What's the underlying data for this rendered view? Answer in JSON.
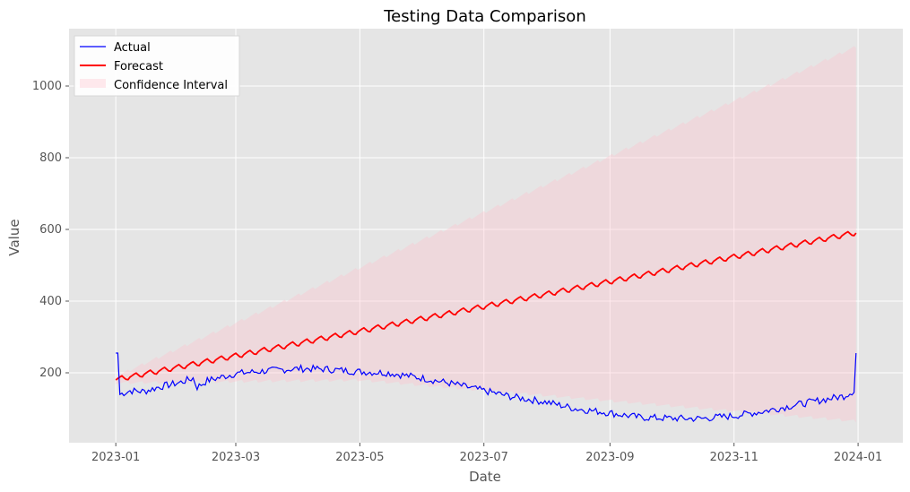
{
  "chart_data": {
    "type": "line",
    "title": "Testing Data Comparison",
    "xlabel": "Date",
    "ylabel": "Value",
    "xlim": [
      "2022-12-09",
      "2024-01-23"
    ],
    "ylim": [
      5,
      1160
    ],
    "grid": true,
    "legend_position": "top-left",
    "x_ticks": [
      "2023-01-01",
      "2023-03-01",
      "2023-05-01",
      "2023-07-01",
      "2023-09-01",
      "2023-11-01",
      "2024-01-01"
    ],
    "x_tick_labels": [
      "2023-01",
      "2023-03",
      "2023-05",
      "2023-07",
      "2023-09",
      "2023-11",
      "2024-01"
    ],
    "y_ticks": [
      200,
      400,
      600,
      800,
      1000
    ],
    "y_tick_labels": [
      "200",
      "400",
      "600",
      "800",
      "1000"
    ],
    "series": [
      {
        "name": "Actual",
        "color": "#0000ff",
        "points": [
          [
            "2023-01-01",
            255
          ],
          [
            "2023-01-02",
            255
          ],
          [
            "2023-01-03",
            140
          ],
          [
            "2023-01-08",
            150
          ],
          [
            "2023-01-15",
            148
          ],
          [
            "2023-01-22",
            160
          ],
          [
            "2023-02-01",
            172
          ],
          [
            "2023-02-08",
            185
          ],
          [
            "2023-02-10",
            160
          ],
          [
            "2023-02-15",
            178
          ],
          [
            "2023-03-01",
            198
          ],
          [
            "2023-03-15",
            205
          ],
          [
            "2023-04-01",
            212
          ],
          [
            "2023-04-15",
            210
          ],
          [
            "2023-05-01",
            203
          ],
          [
            "2023-05-15",
            200
          ],
          [
            "2023-06-01",
            185
          ],
          [
            "2023-06-15",
            170
          ],
          [
            "2023-07-01",
            150
          ],
          [
            "2023-07-15",
            133
          ],
          [
            "2023-08-01",
            118
          ],
          [
            "2023-08-15",
            100
          ],
          [
            "2023-09-01",
            88
          ],
          [
            "2023-09-15",
            76
          ],
          [
            "2023-10-01",
            73
          ],
          [
            "2023-10-15",
            72
          ],
          [
            "2023-11-01",
            80
          ],
          [
            "2023-11-15",
            92
          ],
          [
            "2023-12-01",
            110
          ],
          [
            "2023-12-15",
            125
          ],
          [
            "2023-12-25",
            135
          ],
          [
            "2023-12-30",
            150
          ],
          [
            "2023-12-31",
            255
          ]
        ]
      },
      {
        "name": "Forecast",
        "color": "#ff0000",
        "start": [
          "2023-01-01",
          180
        ],
        "end": [
          "2023-12-31",
          590
        ]
      }
    ],
    "confidence_interval": {
      "name": "Confidence Interval",
      "color": "#ffc0cb",
      "upper_start": [
        "2023-01-01",
        190
      ],
      "upper_end": [
        "2023-12-31",
        1110
      ],
      "lower_start": [
        "2023-01-01",
        172
      ],
      "lower_mid": [
        "2023-05-01",
        180
      ],
      "lower_end": [
        "2023-12-31",
        65
      ]
    }
  }
}
